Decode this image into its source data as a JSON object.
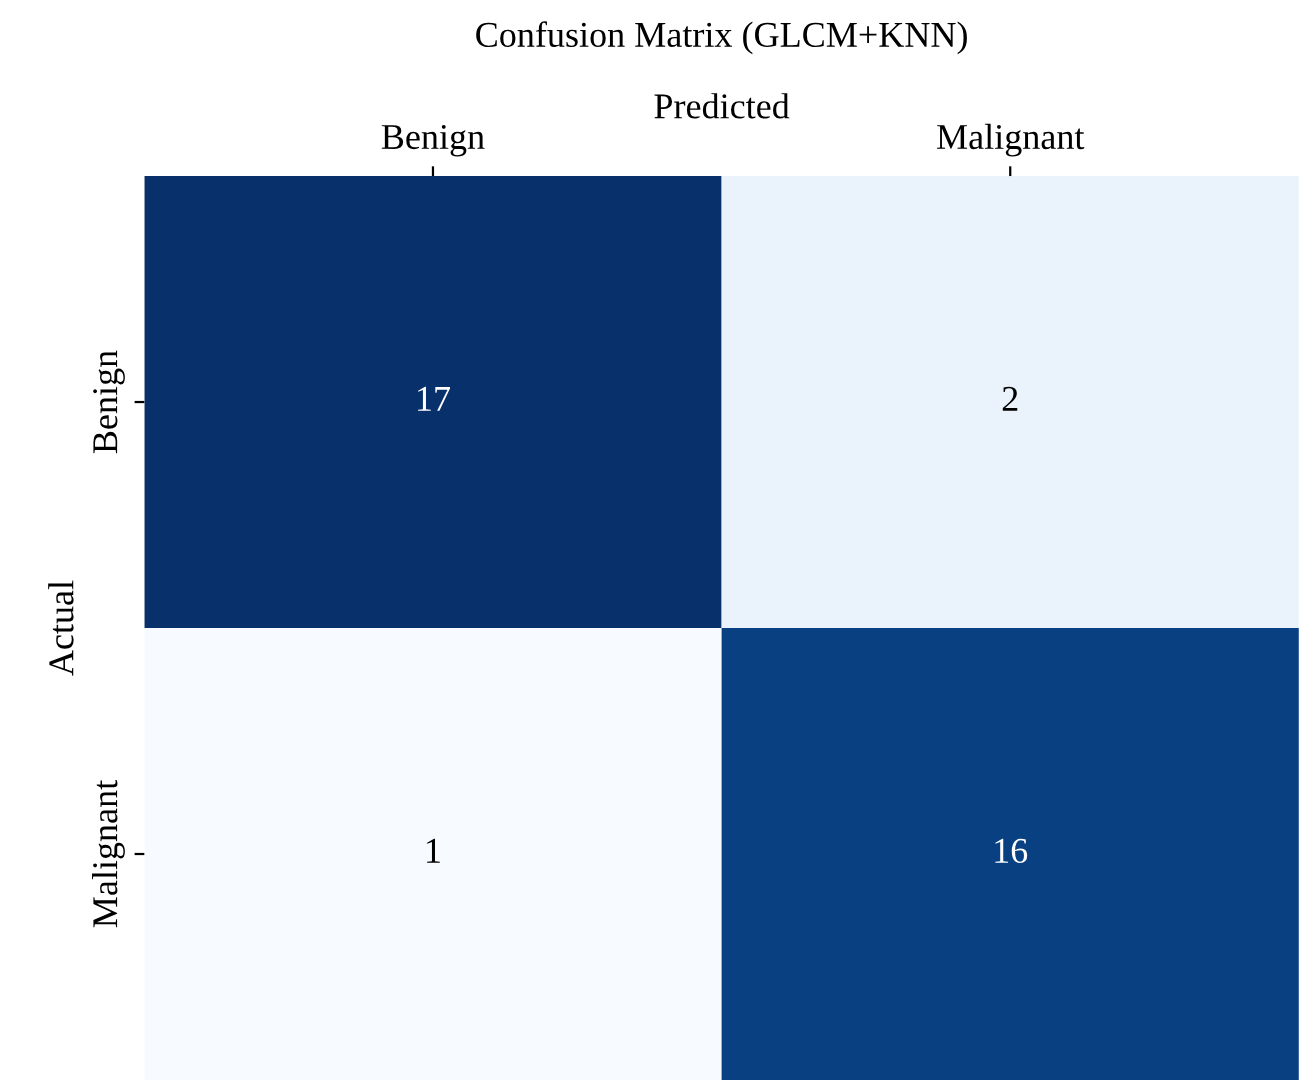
{
  "chart_data": {
    "type": "heatmap",
    "title": "Confusion Matrix (GLCM+KNN)",
    "xlabel": "Predicted",
    "ylabel": "Actual",
    "categories": [
      "Benign",
      "Malignant"
    ],
    "y_categories": [
      "Benign",
      "Malignant"
    ],
    "cells": [
      [
        17,
        2
      ],
      [
        1,
        16
      ]
    ],
    "data_labels": true,
    "grid": false,
    "legend": false
  }
}
